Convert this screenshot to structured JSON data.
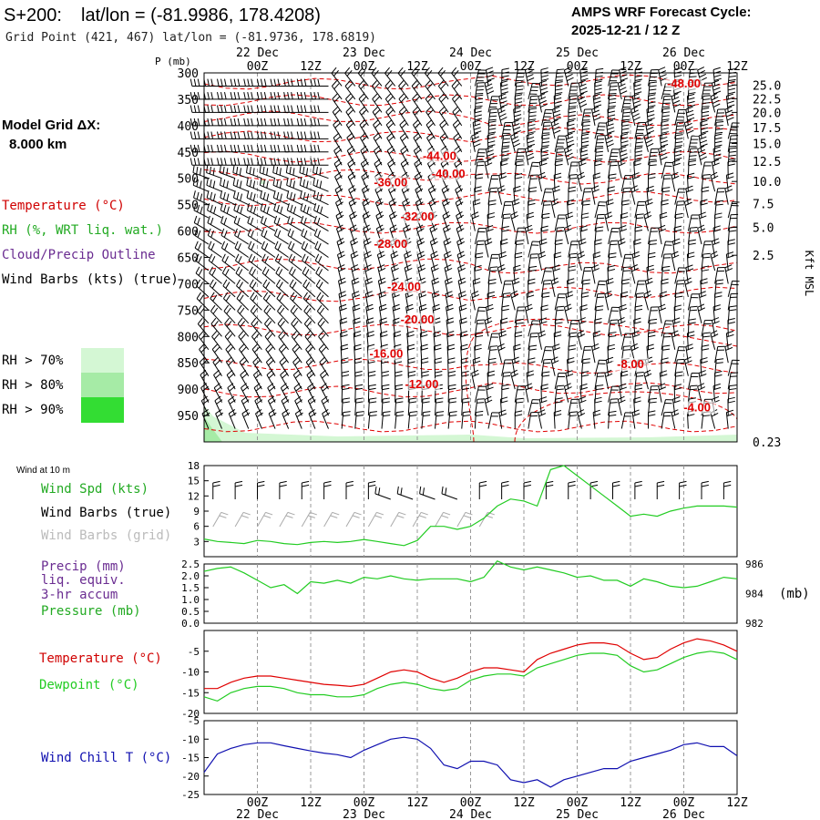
{
  "header": {
    "station": "S+200:",
    "latlon": "lat/lon = (-81.9986, 178.4208)",
    "grid_point": "Grid Point (421, 467) lat/lon = (-81.9736, 178.6819)",
    "cycle_title": "AMPS WRF Forecast Cycle:",
    "cycle_value": "2025-12-21 / 12  Z"
  },
  "sidebar": {
    "model_grid_title": "Model Grid ΔX:",
    "model_grid_value": "8.000 km",
    "legend_temperature": "Temperature (°C)",
    "legend_rh": "RH (%, WRT liq. wat.)",
    "legend_cloud": "Cloud/Precip Outline",
    "legend_wind": "Wind Barbs (kts) (true)",
    "rh_70": "RH > 70%",
    "rh_80": "RH > 80%",
    "rh_90": "RH > 90%",
    "wind10_title": "Wind at 10 m",
    "wind_spd": "Wind Spd (kts)",
    "wind_barbs_true": "Wind Barbs (true)",
    "wind_barbs_grid": "Wind Barbs (grid)",
    "precip_1": "Precip (mm)",
    "precip_2": "liq. equiv.",
    "precip_3": "3-hr accum",
    "pressure": "Pressure (mb)",
    "temperature": "Temperature (°C)",
    "dewpoint": "Dewpoint (°C)",
    "wind_chill": "Wind Chill T (°C)"
  },
  "colors": {
    "temperature": "#e00000",
    "rh_green": "#22aa22",
    "dewpoint": "#22cc22",
    "purple": "#6a2c91",
    "wind_chill": "#1010b0",
    "grid": "#999999",
    "rh70": "#d4f7d4",
    "rh80": "#a6eba6",
    "rh90": "#33dd33",
    "barb_grid": "#aaaaaa"
  },
  "chart_data": [
    {
      "type": "heatmap",
      "panel": "vertical time-section",
      "time_labels_top": [
        {
          "t": 12,
          "label": "00Z"
        },
        {
          "t": 24,
          "label": "12Z"
        },
        {
          "t": 36,
          "label": "00Z"
        },
        {
          "t": 48,
          "label": "12Z"
        },
        {
          "t": 60,
          "label": "00Z"
        },
        {
          "t": 72,
          "label": "12Z"
        },
        {
          "t": 84,
          "label": "00Z"
        },
        {
          "t": 96,
          "label": "12Z"
        },
        {
          "t": 108,
          "label": "00Z"
        },
        {
          "t": 120,
          "label": "12Z"
        }
      ],
      "date_labels": [
        {
          "t": 12,
          "label": "22 Dec"
        },
        {
          "t": 36,
          "label": "23 Dec"
        },
        {
          "t": 60,
          "label": "24 Dec"
        },
        {
          "t": 84,
          "label": "25 Dec"
        },
        {
          "t": 108,
          "label": "26 Dec"
        }
      ],
      "x_range_hours": [
        0,
        120
      ],
      "ylabel": "P (mb)",
      "pressure_ticks": [
        300,
        350,
        400,
        450,
        500,
        550,
        600,
        650,
        700,
        750,
        800,
        850,
        900,
        950
      ],
      "pressure_range": [
        300,
        1000
      ],
      "height_label": "Kft MSL",
      "height_ticks": [
        {
          "p": 323,
          "label": "25.0"
        },
        {
          "p": 349,
          "label": "22.5"
        },
        {
          "p": 375,
          "label": "20.0"
        },
        {
          "p": 404,
          "label": "17.5"
        },
        {
          "p": 434,
          "label": "15.0"
        },
        {
          "p": 468,
          "label": "12.5"
        },
        {
          "p": 506,
          "label": "10.0"
        },
        {
          "p": 548,
          "label": "7.5"
        },
        {
          "p": 593,
          "label": "5.0"
        },
        {
          "p": 646,
          "label": "2.5"
        },
        {
          "p": 1000,
          "label": "0.23"
        }
      ],
      "temperature_contour_labels": [
        {
          "value": "-48.00",
          "t": 108,
          "p": 328
        },
        {
          "value": "-44.00",
          "t": 53,
          "p": 465
        },
        {
          "value": "-40.00",
          "t": 55,
          "p": 499
        },
        {
          "value": "-36.00",
          "t": 42,
          "p": 515
        },
        {
          "value": "-32.00",
          "t": 48,
          "p": 580
        },
        {
          "value": "-28.00",
          "t": 42,
          "p": 632
        },
        {
          "value": "-24.00",
          "t": 45,
          "p": 713
        },
        {
          "value": "-20.00",
          "t": 48,
          "p": 775
        },
        {
          "value": "-16.00",
          "t": 41,
          "p": 840
        },
        {
          "value": "-12.00",
          "t": 49,
          "p": 898
        },
        {
          "value": "-8.00",
          "t": 96,
          "p": 860
        },
        {
          "value": "-4.00",
          "t": 111,
          "p": 942
        }
      ],
      "rh_legend": [
        "RH > 70%",
        "RH > 80%",
        "RH > 90%"
      ]
    },
    {
      "type": "line",
      "panel": "10 m wind speed",
      "ylabel": "Wind Spd (kts)",
      "ylim": [
        0,
        18
      ],
      "yticks": [
        3,
        6,
        9,
        12,
        15,
        18
      ],
      "series": [
        {
          "name": "Wind Spd (kts)",
          "x": [
            0,
            3,
            6,
            9,
            12,
            15,
            18,
            21,
            24,
            27,
            30,
            33,
            36,
            39,
            42,
            45,
            48,
            51,
            54,
            57,
            60,
            63,
            66,
            69,
            72,
            75,
            78,
            81,
            84,
            87,
            90,
            93,
            96,
            99,
            102,
            105,
            108,
            111,
            114,
            117,
            120
          ],
          "values": [
            3.5,
            3,
            2.8,
            2.6,
            3.2,
            3,
            2.6,
            2.4,
            2.8,
            3,
            2.8,
            3,
            3.4,
            3,
            2.6,
            2.2,
            3.2,
            6,
            6,
            5.4,
            6,
            7.6,
            10,
            11.4,
            11,
            10,
            17.2,
            18,
            16,
            14,
            12,
            10,
            8,
            8.4,
            8,
            9,
            9.6,
            10,
            10,
            10,
            9.8
          ]
        }
      ]
    },
    {
      "type": "line",
      "panel": "precip and pressure",
      "left_axis": {
        "label": "Precip (mm)",
        "ticks": [
          "0.0",
          "0.5",
          "1.0",
          "1.5",
          "2.0",
          "2.5"
        ],
        "range": [
          0,
          2.5
        ]
      },
      "right_axis": {
        "label": "(mb)",
        "ticks": [
          "982",
          "984",
          "986"
        ],
        "range": [
          982,
          986
        ]
      },
      "series": [
        {
          "name": "Pressure (mb)",
          "x": [
            0,
            3,
            6,
            9,
            12,
            15,
            18,
            21,
            24,
            27,
            30,
            33,
            36,
            39,
            42,
            45,
            48,
            51,
            54,
            57,
            60,
            63,
            66,
            69,
            72,
            75,
            78,
            81,
            84,
            87,
            90,
            93,
            96,
            99,
            102,
            105,
            108,
            111,
            114,
            117,
            120
          ],
          "values": [
            985.5,
            985.7,
            985.8,
            985.4,
            984.9,
            984.4,
            984.6,
            984,
            984.8,
            984.7,
            984.9,
            984.7,
            985.1,
            985,
            985.2,
            985,
            984.9,
            985,
            985,
            985,
            984.8,
            985.1,
            986.2,
            985.8,
            985.6,
            985.8,
            985.6,
            985.4,
            985.1,
            985.2,
            984.9,
            984.9,
            984.5,
            985,
            984.8,
            984.5,
            984.4,
            984.5,
            984.8,
            985.1,
            985
          ]
        }
      ]
    },
    {
      "type": "line",
      "panel": "temperature and dewpoint",
      "ylim": [
        -20,
        0
      ],
      "yticks": [
        -20,
        -15,
        -10,
        -5
      ],
      "series": [
        {
          "name": "Temperature (°C)",
          "x": [
            0,
            3,
            6,
            9,
            12,
            15,
            18,
            21,
            24,
            27,
            30,
            33,
            36,
            39,
            42,
            45,
            48,
            51,
            54,
            57,
            60,
            63,
            66,
            69,
            72,
            75,
            78,
            81,
            84,
            87,
            90,
            93,
            96,
            99,
            102,
            105,
            108,
            111,
            114,
            117,
            120
          ],
          "values": [
            -14,
            -14,
            -12.5,
            -11.5,
            -11,
            -11,
            -11.5,
            -12,
            -12.5,
            -13,
            -13.2,
            -13.5,
            -13,
            -11.5,
            -10,
            -9.5,
            -10,
            -11.5,
            -12.5,
            -11.5,
            -10,
            -9,
            -9,
            -9.5,
            -10,
            -7,
            -5.5,
            -4.5,
            -3.5,
            -3,
            -3,
            -3.5,
            -5.5,
            -7,
            -6.5,
            -4.5,
            -3,
            -2,
            -2.5,
            -3.5,
            -5
          ]
        },
        {
          "name": "Dewpoint (°C)",
          "x": [
            0,
            3,
            6,
            9,
            12,
            15,
            18,
            21,
            24,
            27,
            30,
            33,
            36,
            39,
            42,
            45,
            48,
            51,
            54,
            57,
            60,
            63,
            66,
            69,
            72,
            75,
            78,
            81,
            84,
            87,
            90,
            93,
            96,
            99,
            102,
            105,
            108,
            111,
            114,
            117,
            120
          ],
          "values": [
            -16,
            -17,
            -15,
            -14,
            -13.5,
            -13.5,
            -14,
            -15,
            -15.5,
            -15.5,
            -16,
            -16,
            -15.5,
            -14,
            -13,
            -12.5,
            -13,
            -14,
            -14.5,
            -14,
            -12,
            -11,
            -10.5,
            -10.5,
            -11,
            -9,
            -8,
            -7,
            -6,
            -5.5,
            -5.5,
            -6,
            -8.5,
            -10,
            -9.5,
            -8,
            -6.5,
            -5.5,
            -5,
            -5.5,
            -7
          ]
        }
      ]
    },
    {
      "type": "line",
      "panel": "wind chill",
      "ylim": [
        -25,
        -5
      ],
      "yticks": [
        -25,
        -20,
        -15,
        -10,
        -5
      ],
      "series": [
        {
          "name": "Wind Chill T (°C)",
          "x": [
            0,
            3,
            6,
            9,
            12,
            15,
            18,
            21,
            24,
            27,
            30,
            33,
            36,
            39,
            42,
            45,
            48,
            51,
            54,
            57,
            60,
            63,
            66,
            69,
            72,
            75,
            78,
            81,
            84,
            87,
            90,
            93,
            96,
            99,
            102,
            105,
            108,
            111,
            114,
            117,
            120
          ],
          "values": [
            -19,
            -14,
            -12.5,
            -11.5,
            -11,
            -11,
            -11.8,
            -12.5,
            -13.2,
            -13.8,
            -14.2,
            -15,
            -13,
            -11.5,
            -10,
            -9.5,
            -10,
            -12.5,
            -17,
            -18,
            -16,
            -16,
            -17,
            -21,
            -21.8,
            -21,
            -23,
            -21,
            -20,
            -19,
            -18,
            -18,
            -16,
            -15,
            -14,
            -13,
            -11.5,
            -11,
            -12,
            -12,
            -14.5
          ]
        }
      ]
    }
  ]
}
